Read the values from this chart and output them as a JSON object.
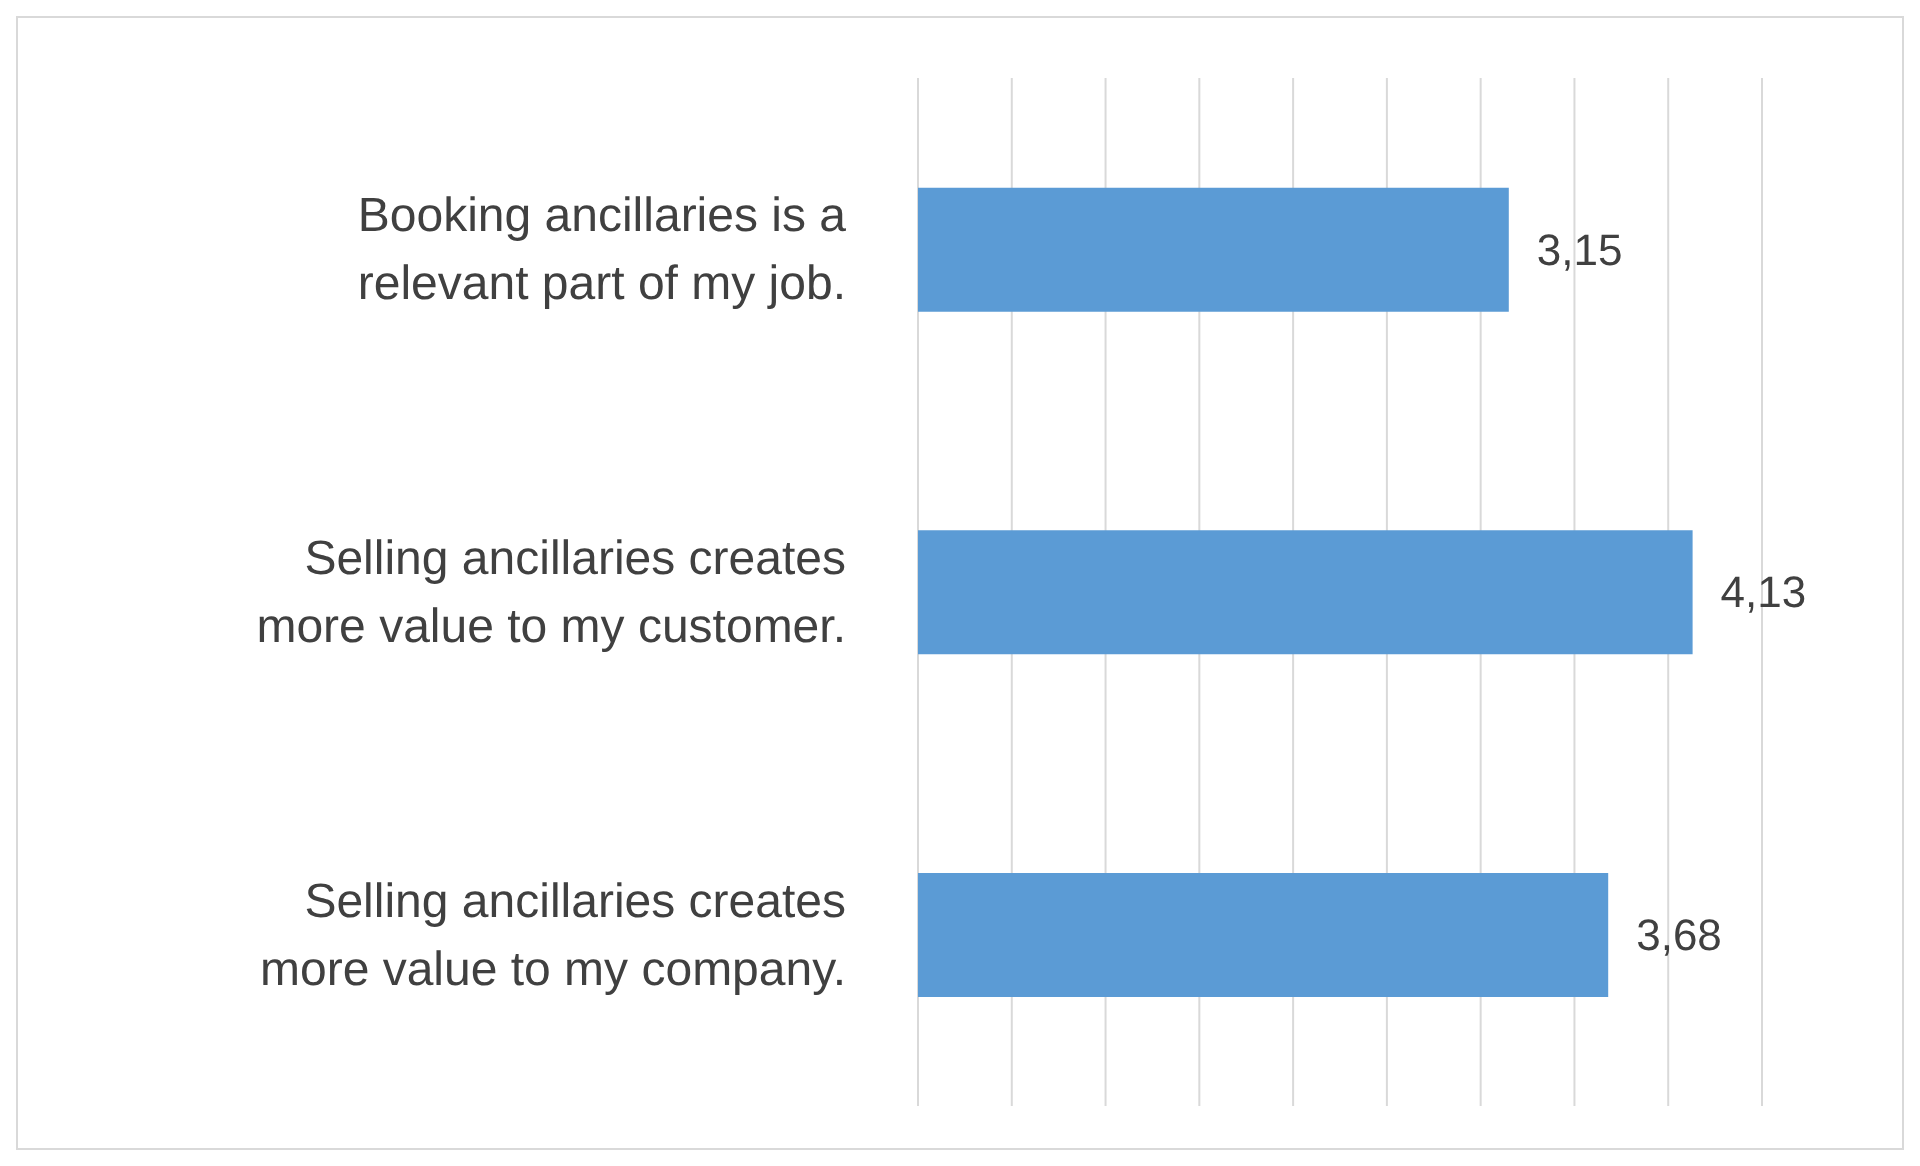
{
  "chart_data": {
    "type": "bar",
    "orientation": "horizontal",
    "categories": [
      "Booking ancillaries is a relevant part of my job.",
      "Selling ancillaries creates more value to my customer.",
      "Selling ancillaries creates more value to my company."
    ],
    "values": [
      3.15,
      4.13,
      3.68
    ],
    "color": "#5b9bd5",
    "value_labels": [
      "3,15",
      "4,13",
      "3,68"
    ],
    "xlim": [
      0,
      4.5
    ],
    "xticks": [
      {
        "value": 0,
        "label": null
      },
      {
        "value": 0.5,
        "label": null
      },
      {
        "value": 1,
        "label": null
      },
      {
        "value": 1.5,
        "label": null
      },
      {
        "value": 2,
        "label": null
      },
      {
        "value": 2.5,
        "label": null
      },
      {
        "value": 3,
        "label": null
      },
      {
        "value": 3.5,
        "label": null
      },
      {
        "value": 4,
        "label": null
      },
      {
        "value": 4.5,
        "label": null
      }
    ],
    "tick_labels": "y",
    "grid": "x",
    "legend": false
  }
}
